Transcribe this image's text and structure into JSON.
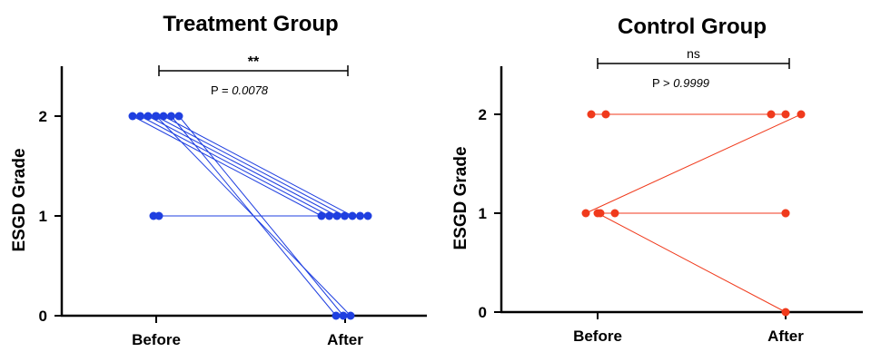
{
  "chart_data": [
    {
      "type": "scatter",
      "subtype": "paired-before-after",
      "title": "Treatment Group",
      "ylabel": "ESGD Grade",
      "categories": [
        "Before",
        "After"
      ],
      "yticks": [
        "0",
        "1",
        "2"
      ],
      "ylim": [
        0,
        2.5
      ],
      "color": "#1f3fe0",
      "pairs": [
        [
          2,
          1
        ],
        [
          2,
          1
        ],
        [
          2,
          1
        ],
        [
          2,
          1
        ],
        [
          2,
          1
        ],
        [
          2,
          0
        ],
        [
          2,
          0
        ],
        [
          2,
          0
        ],
        [
          1,
          1
        ],
        [
          1,
          1
        ]
      ],
      "significance": {
        "stars": "**",
        "p_prefix": "P = ",
        "p_value": "0.0078"
      }
    },
    {
      "type": "scatter",
      "subtype": "paired-before-after",
      "title": "Control Group",
      "ylabel": "ESGD Grade",
      "categories": [
        "Before",
        "After"
      ],
      "yticks": [
        "0",
        "1",
        "2"
      ],
      "ylim": [
        0,
        2.5
      ],
      "color": "#f03a1c",
      "pairs": [
        [
          2,
          2
        ],
        [
          2,
          2
        ],
        [
          1,
          2
        ],
        [
          1,
          1
        ],
        [
          1,
          1
        ],
        [
          1,
          0
        ]
      ],
      "significance": {
        "stars": "ns",
        "p_prefix": "P > ",
        "p_value": "0.9999"
      }
    }
  ]
}
